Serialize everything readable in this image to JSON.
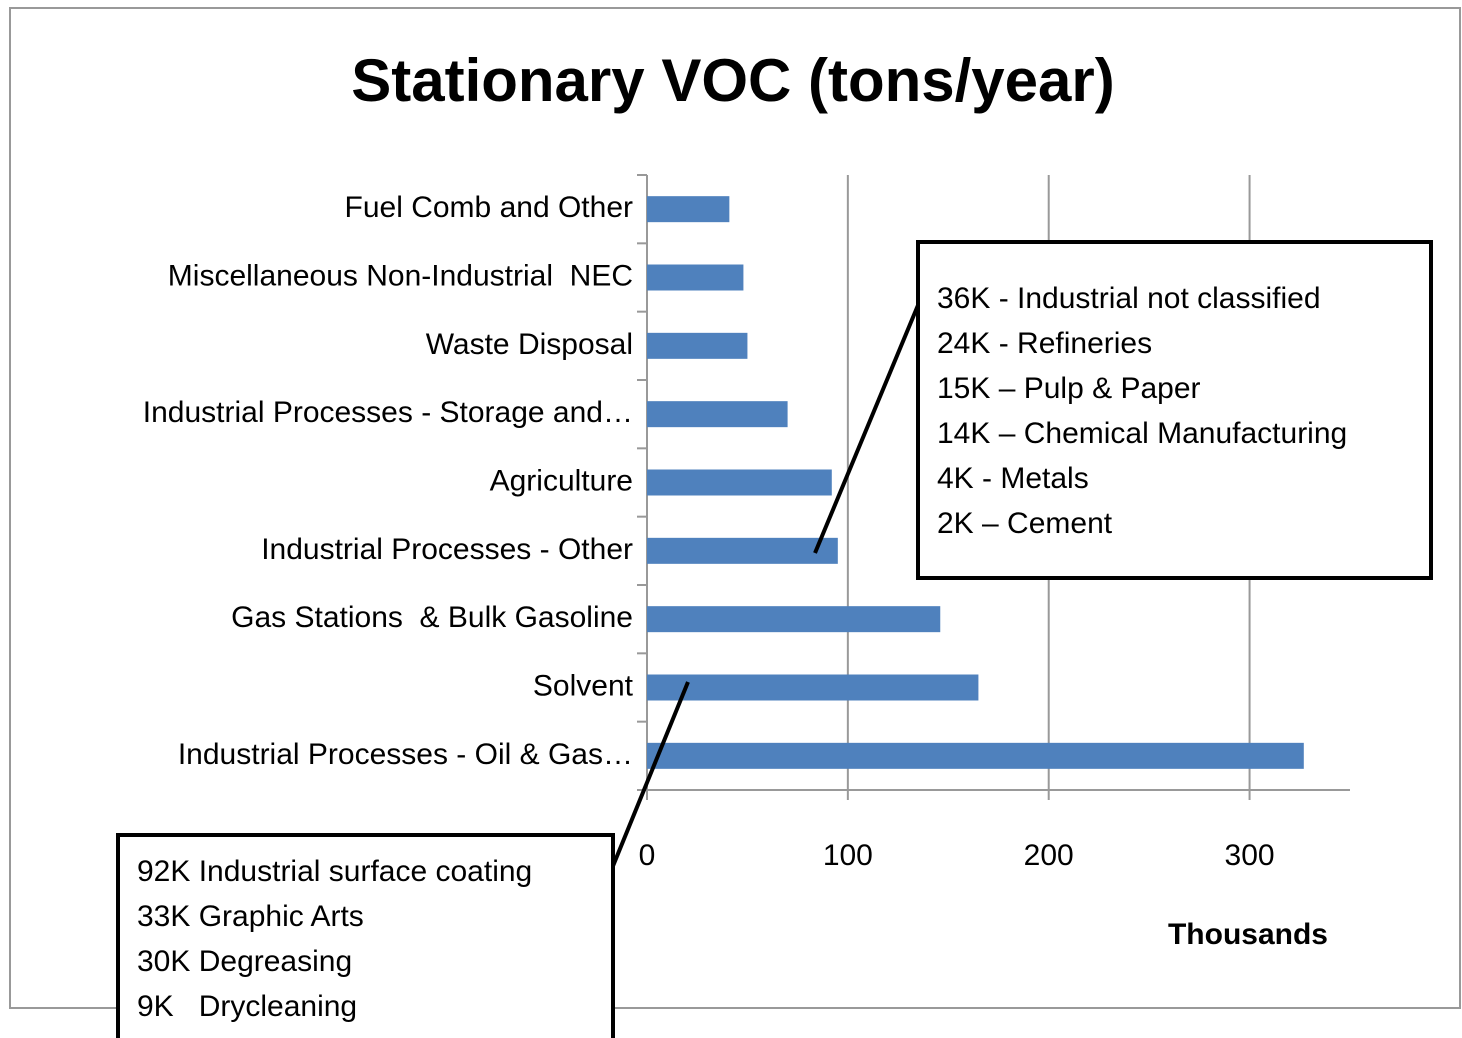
{
  "chart_data": {
    "type": "barh",
    "title": "Stationary VOC (tons/year)",
    "categories": [
      "Fuel Comb and Other",
      "Miscellaneous Non-Industrial  NEC",
      "Waste Disposal",
      "Industrial Processes - Storage and…",
      "Agriculture",
      "Industrial Processes - Other",
      "Gas Stations  & Bulk Gasoline",
      "Solvent",
      "Industrial Processes - Oil & Gas…"
    ],
    "values": [
      41,
      48,
      50,
      70,
      92,
      95,
      146,
      165,
      327
    ],
    "color": "#4f81bd",
    "xlim": [
      0,
      350
    ],
    "xticks": [
      0,
      100,
      200,
      300
    ],
    "grid": true,
    "xlabel": "Thousands",
    "annotations": [
      {
        "lines": [
          "36K - Industrial not classified",
          "24K - Refineries",
          "15K – Pulp & Paper",
          "14K – Chemical Manufacturing",
          "4K - Metals",
          "2K – Cement"
        ]
      },
      {
        "lines": [
          "92K Industrial surface coating",
          "33K Graphic Arts",
          "30K Degreasing",
          "9K   Drycleaning"
        ]
      }
    ]
  }
}
